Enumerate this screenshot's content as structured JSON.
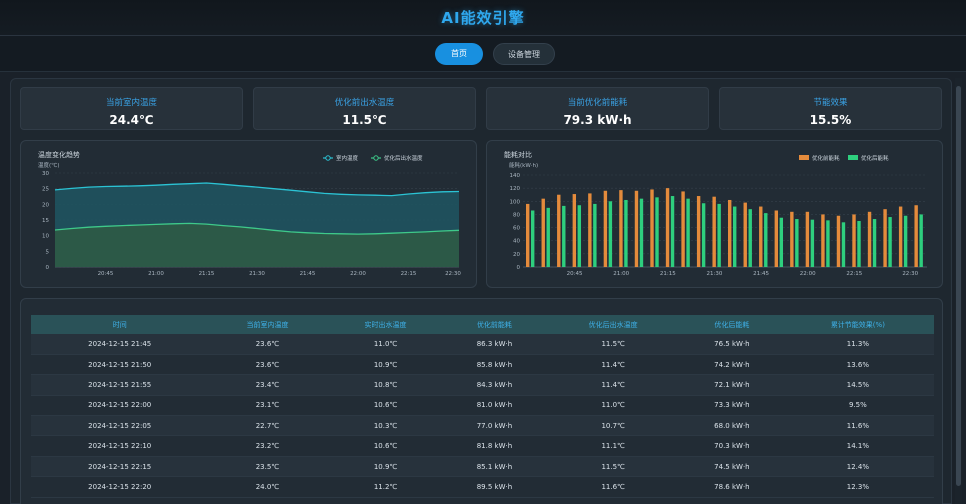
{
  "app": {
    "title": "AI能效引擎"
  },
  "nav": {
    "tabs": [
      {
        "label": "首页",
        "active": true
      },
      {
        "label": "设备管理",
        "active": false
      }
    ]
  },
  "stats": [
    {
      "label": "当前室内温度",
      "value": "24.4℃"
    },
    {
      "label": "优化前出水温度",
      "value": "11.5℃"
    },
    {
      "label": "当前优化前能耗",
      "value": "79.3 kW·h"
    },
    {
      "label": "节能效果",
      "value": "15.5%"
    }
  ],
  "chart_data": [
    {
      "type": "area",
      "title": "温度变化趋势",
      "ylabel": "温度(℃)",
      "ylim": [
        0,
        30
      ],
      "yticks": [
        0,
        5,
        10,
        15,
        20,
        25,
        30
      ],
      "x_tick_labels": [
        "20:45",
        "21:00",
        "21:15",
        "21:30",
        "21:45",
        "22:00",
        "22:15",
        "22:30"
      ],
      "x_range": [
        20.5,
        22.5
      ],
      "x": [
        20.5,
        20.583,
        20.667,
        20.75,
        20.833,
        20.917,
        21.0,
        21.083,
        21.167,
        21.25,
        21.333,
        21.417,
        21.5,
        21.583,
        21.667,
        21.75,
        21.833,
        21.917,
        22.0,
        22.083,
        22.167,
        22.25,
        22.333,
        22.417,
        22.5
      ],
      "series": [
        {
          "name": "室内温度",
          "color": "#2bc3d4",
          "values": [
            24.6,
            25.1,
            25.5,
            25.7,
            25.8,
            25.9,
            26.1,
            26.4,
            26.6,
            26.8,
            26.4,
            25.9,
            25.5,
            25.0,
            24.5,
            24.0,
            23.5,
            23.2,
            23.0,
            22.9,
            22.8,
            23.3,
            23.7,
            24.0,
            24.1
          ]
        },
        {
          "name": "优化后出水温度",
          "color": "#3ec98a",
          "values": [
            11.8,
            12.3,
            12.7,
            13.0,
            13.2,
            13.4,
            13.6,
            13.8,
            13.9,
            13.7,
            13.2,
            12.8,
            12.3,
            11.7,
            11.2,
            10.9,
            10.7,
            10.6,
            10.5,
            10.6,
            10.8,
            11.0,
            11.2,
            11.5,
            11.7
          ]
        }
      ],
      "legend": "top-right"
    },
    {
      "type": "bar",
      "title": "能耗对比",
      "ylabel": "能耗(kW·h)",
      "ylim": [
        0,
        140
      ],
      "yticks": [
        0,
        20,
        40,
        60,
        80,
        100,
        120,
        140
      ],
      "x_tick_labels": [
        "20:45",
        "21:00",
        "21:15",
        "21:30",
        "21:45",
        "22:00",
        "22:15",
        "22:30"
      ],
      "series": [
        {
          "name": "优化前能耗",
          "color": "#e48b3c",
          "values": [
            96,
            104,
            110,
            111,
            112,
            116,
            117,
            116,
            118,
            120,
            115,
            108,
            107,
            102,
            98,
            92,
            86,
            84,
            84,
            80,
            78,
            80,
            84,
            88,
            92,
            94
          ]
        },
        {
          "name": "优化后能耗",
          "color": "#2ecf7e",
          "values": [
            86,
            90,
            93,
            94,
            96,
            100,
            102,
            104,
            106,
            108,
            104,
            97,
            96,
            92,
            88,
            82,
            75,
            73,
            72,
            71,
            68,
            70,
            73,
            76,
            78,
            80
          ]
        }
      ],
      "legend": "top-right"
    }
  ],
  "table": {
    "columns": [
      "时间",
      "当前室内温度",
      "实时出水温度",
      "优化前能耗",
      "优化后出水温度",
      "优化后能耗",
      "累计节能效果(%)"
    ],
    "rows": [
      [
        "2024-12-15 21:45",
        "23.6℃",
        "11.0℃",
        "86.3 kW·h",
        "11.5℃",
        "76.5 kW·h",
        "11.3%"
      ],
      [
        "2024-12-15 21:50",
        "23.6℃",
        "10.9℃",
        "85.8 kW·h",
        "11.4℃",
        "74.2 kW·h",
        "13.6%"
      ],
      [
        "2024-12-15 21:55",
        "23.4℃",
        "10.8℃",
        "84.3 kW·h",
        "11.4℃",
        "72.1 kW·h",
        "14.5%"
      ],
      [
        "2024-12-15 22:00",
        "23.1℃",
        "10.6℃",
        "81.0 kW·h",
        "11.0℃",
        "73.3 kW·h",
        "9.5%"
      ],
      [
        "2024-12-15 22:05",
        "22.7℃",
        "10.3℃",
        "77.0 kW·h",
        "10.7℃",
        "68.0 kW·h",
        "11.6%"
      ],
      [
        "2024-12-15 22:10",
        "23.2℃",
        "10.6℃",
        "81.8 kW·h",
        "11.1℃",
        "70.3 kW·h",
        "14.1%"
      ],
      [
        "2024-12-15 22:15",
        "23.5℃",
        "10.9℃",
        "85.1 kW·h",
        "11.5℃",
        "74.5 kW·h",
        "12.4%"
      ],
      [
        "2024-12-15 22:20",
        "24.0℃",
        "11.2℃",
        "89.5 kW·h",
        "11.6℃",
        "78.6 kW·h",
        "12.3%"
      ]
    ]
  },
  "colors": {
    "accent": "#1890e0",
    "title": "#2fa8ee",
    "background": "#1a2129",
    "card": "#27313a",
    "table_header": "#2a5258"
  }
}
